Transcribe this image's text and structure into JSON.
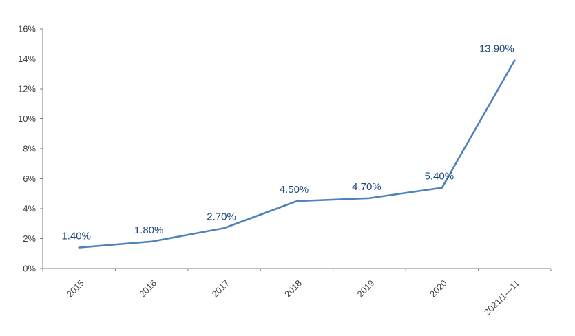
{
  "chart_data": {
    "type": "line",
    "title": "",
    "xlabel": "",
    "ylabel": "",
    "categories": [
      "2015",
      "2016",
      "2017",
      "2018",
      "2019",
      "2020",
      "2021/1—11"
    ],
    "values": [
      1.4,
      1.8,
      2.7,
      4.5,
      4.7,
      5.4,
      13.9
    ],
    "point_labels": [
      "1.40%",
      "1.80%",
      "2.70%",
      "4.50%",
      "4.70%",
      "5.40%",
      "13.90%"
    ],
    "ylim": [
      0,
      16
    ],
    "ytick_step": 2,
    "ytick_labels": [
      "0%",
      "2%",
      "4%",
      "6%",
      "8%",
      "10%",
      "12%",
      "14%",
      "16%"
    ],
    "grid": false,
    "legend": false,
    "colors": {
      "line": "#4F81BD",
      "data_label": "#1F497D",
      "axis": "#7F7F7F",
      "tick_text": "#404040",
      "background": "#FFFFFF"
    }
  }
}
